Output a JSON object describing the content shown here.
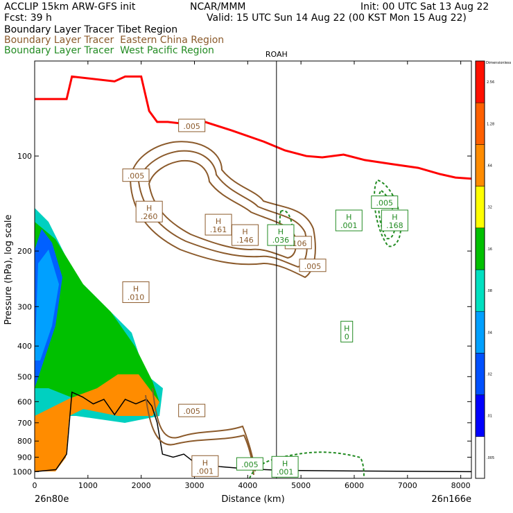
{
  "header": {
    "line1_left": "ACCLIP 15km ARW-GFS init",
    "line1_mid": "NCAR/MMM",
    "line1_right": "Init: 00 UTC Sat 13 Aug 22",
    "line2_left": "Fcst:    39 h",
    "line2_right": "Valid: 15 UTC Sun 14 Aug 22 (00 KST Mon 15 Aug 22)",
    "tracer_tibet": "Boundary Layer Tracer  Tibet Region",
    "tracer_china_a": "Boundary Layer Tracer  ",
    "tracer_china_b": "Eastern China Region",
    "tracer_wp_a": "Boundary Layer Tracer  ",
    "tracer_wp_b": "West Pacific Region"
  },
  "chart_data": {
    "type": "cross-section",
    "xlabel": "Distance (km)",
    "ylabel": "Pressure (hPa), log scale",
    "xlim": [
      0,
      8200
    ],
    "ylim": [
      1050,
      50
    ],
    "y_scale": "log",
    "x_ticks": [
      "0",
      "1000",
      "2000",
      "3000",
      "4000",
      "5000",
      "6000",
      "7000",
      "8000"
    ],
    "y_ticks": [
      "100",
      "200",
      "300",
      "400",
      "500",
      "600",
      "700",
      "800",
      "900",
      "1000"
    ],
    "left_endpoint": "26n80e",
    "right_endpoint": "26n166e",
    "vertical_marker": {
      "label": "ROAH",
      "x": 4540
    },
    "colorbar_title": "Dimensionless",
    "colorbar_labels": [
      ".005",
      ".01",
      ".02",
      ".04",
      ".08",
      ".16",
      ".32",
      ".64",
      "1.28",
      "2.56"
    ],
    "colorbar_colors": [
      "#ffffff",
      "#0000ff",
      "#0050ff",
      "#00a0ff",
      "#00e0c0",
      "#00c000",
      "#ffff00",
      "#ff8c00",
      "#ff6000",
      "#ff1000"
    ],
    "tropopause_color": "#ff0000",
    "china_color": "#8B5A2B",
    "pacific_color": "#228B22",
    "tropopause": [
      [
        0,
        66
      ],
      [
        600,
        66
      ],
      [
        700,
        56
      ],
      [
        1500,
        58
      ],
      [
        1700,
        56
      ],
      [
        2000,
        56
      ],
      [
        2150,
        72
      ],
      [
        2300,
        78
      ],
      [
        2500,
        78
      ],
      [
        2800,
        79
      ],
      [
        3200,
        78
      ],
      [
        3700,
        83
      ],
      [
        4300,
        90
      ],
      [
        4700,
        96
      ],
      [
        5100,
        100
      ],
      [
        5400,
        101
      ],
      [
        5800,
        99
      ],
      [
        6200,
        103
      ],
      [
        6700,
        106
      ],
      [
        7200,
        109
      ],
      [
        7600,
        114
      ],
      [
        7900,
        117
      ],
      [
        8200,
        118
      ]
    ],
    "terrain": [
      [
        0,
        1000
      ],
      [
        400,
        985
      ],
      [
        600,
        880
      ],
      [
        700,
        560
      ],
      [
        900,
        580
      ],
      [
        1100,
        610
      ],
      [
        1300,
        590
      ],
      [
        1500,
        660
      ],
      [
        1700,
        590
      ],
      [
        1900,
        610
      ],
      [
        2100,
        590
      ],
      [
        2200,
        620
      ],
      [
        2300,
        700
      ],
      [
        2400,
        880
      ],
      [
        2600,
        900
      ],
      [
        2800,
        880
      ],
      [
        3000,
        935
      ],
      [
        3500,
        965
      ],
      [
        4000,
        980
      ],
      [
        4500,
        988
      ],
      [
        5000,
        992
      ],
      [
        6000,
        995
      ],
      [
        8200,
        1000
      ]
    ],
    "labels": [
      {
        "region": "china",
        "text": ".005",
        "x": 1900,
        "y": 115
      },
      {
        "region": "china",
        "text": ".005",
        "x": 2950,
        "y": 80
      },
      {
        "region": "china",
        "text": "H\n.260",
        "x": 2150,
        "y": 150
      },
      {
        "region": "china",
        "text": "H\n.161",
        "x": 3450,
        "y": 165
      },
      {
        "region": "china",
        "text": "H\n.146",
        "x": 3950,
        "y": 178
      },
      {
        "region": "china",
        "text": ".106",
        "x": 4950,
        "y": 188
      },
      {
        "region": "china",
        "text": ".005",
        "x": 5220,
        "y": 222
      },
      {
        "region": "china",
        "text": "H\n.010",
        "x": 1900,
        "y": 270
      },
      {
        "region": "china",
        "text": ".005",
        "x": 2950,
        "y": 640
      },
      {
        "region": "china",
        "text": "H\n.001",
        "x": 3200,
        "y": 960
      },
      {
        "region": "pacific",
        "text": "H\n.036",
        "x": 4620,
        "y": 178
      },
      {
        "region": "pacific",
        "text": "H\n.001",
        "x": 5900,
        "y": 160
      },
      {
        "region": "pacific",
        "text": ".005",
        "x": 6570,
        "y": 140
      },
      {
        "region": "pacific",
        "text": "H\n.168",
        "x": 6760,
        "y": 160
      },
      {
        "region": "pacific",
        "text": "H\n0",
        "x": 5860,
        "y": 360
      },
      {
        "region": "pacific",
        "text": ".005",
        "x": 4040,
        "y": 945
      },
      {
        "region": "pacific",
        "text": "H\n.001",
        "x": 4700,
        "y": 965
      }
    ]
  }
}
